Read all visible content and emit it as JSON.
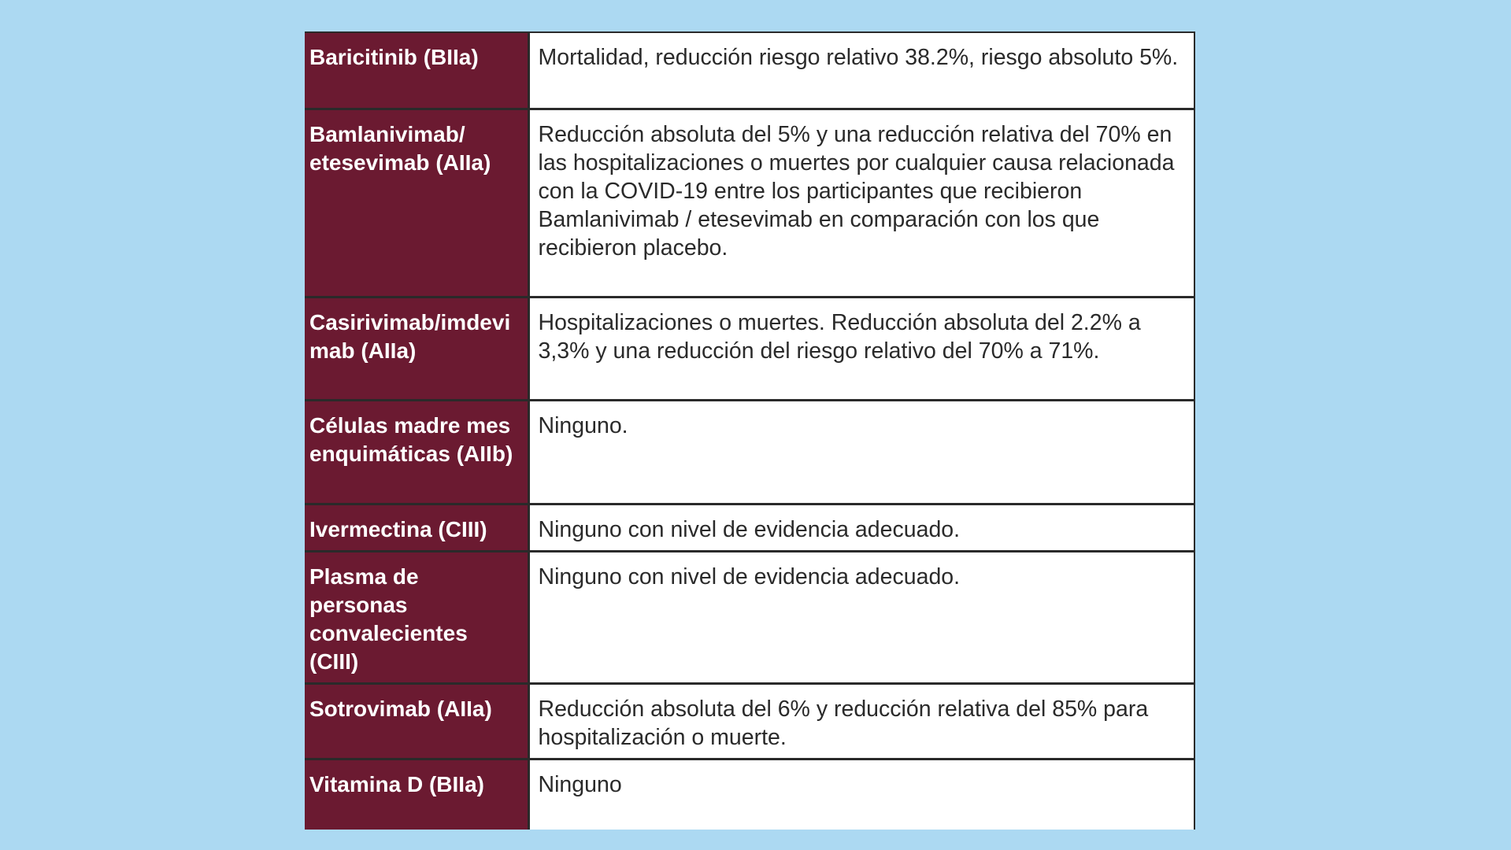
{
  "table": {
    "rows": [
      {
        "drug": "Baricitinib (BIIa)",
        "effect": "Mortalidad, reducción riesgo relativo 38.2%, riesgo absoluto 5%."
      },
      {
        "drug": "Bamlanivimab/ etesevimab (AIIa)",
        "effect": "Reducción absoluta del 5% y una reducción relativa del 70% en las hospitalizaciones o muertes por cualquier causa relacionada con la COVID-19 entre los participantes que recibieron Bamlanivimab / etesevimab en comparación con los que recibieron placebo."
      },
      {
        "drug": "Casirivimab/imdevimab (AIIa)",
        "effect": "Hospitalizaciones o muertes. Reducción absoluta del 2.2% a 3,3% y una reducción del riesgo relativo del 70% a 71%."
      },
      {
        "drug": "Células madre mesenquimáticas (AIIb)",
        "effect": "Ninguno."
      },
      {
        "drug": "Ivermectina (CIII)",
        "effect": "Ninguno con nivel de evidencia adecuado."
      },
      {
        "drug": "Plasma de personas convalecientes (CIII)",
        "effect": "Ninguno con nivel de evidencia adecuado."
      },
      {
        "drug": "Sotrovimab (AIIa)",
        "effect": "Reducción absoluta del 6% y reducción relativa del 85% para hospitalización o muerte."
      },
      {
        "drug": "Vitamina D (BIIa)",
        "effect": "Ninguno"
      }
    ]
  },
  "colors": {
    "background": "#acd9f2",
    "drug_column": "#6b1a31",
    "text_dark": "#2a2a2a",
    "text_light": "#ffffff"
  }
}
